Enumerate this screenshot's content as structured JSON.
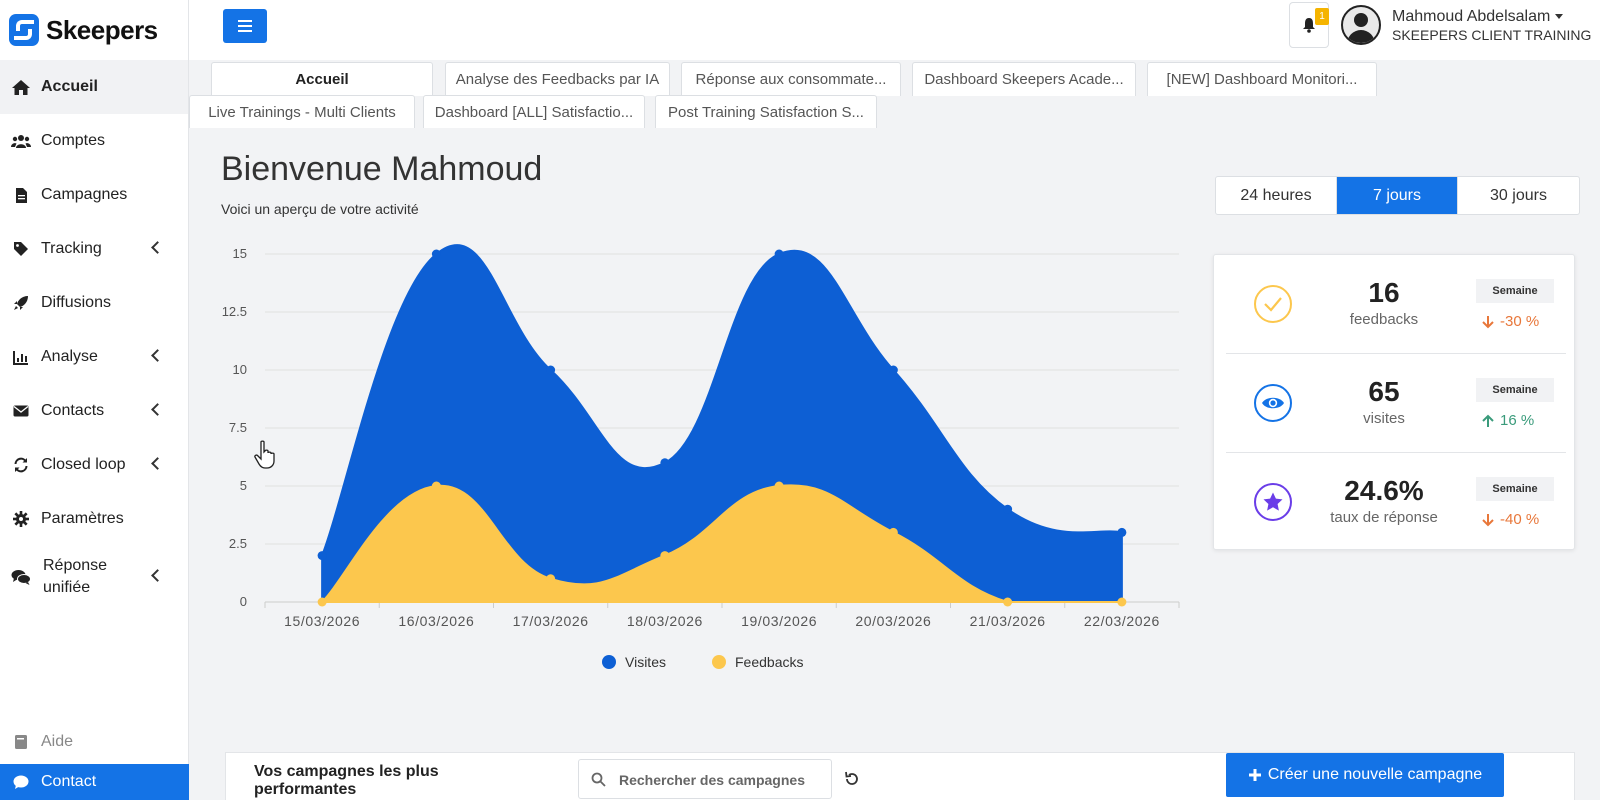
{
  "brand": {
    "name": "Skeepers"
  },
  "sidebar": {
    "items": [
      {
        "label": "Accueil",
        "icon": "home-icon",
        "active": true,
        "chevron": false
      },
      {
        "label": "Comptes",
        "icon": "users-icon",
        "chevron": false
      },
      {
        "label": "Campagnes",
        "icon": "file-icon",
        "chevron": false
      },
      {
        "label": "Tracking",
        "icon": "tag-icon",
        "chevron": true
      },
      {
        "label": "Diffusions",
        "icon": "rocket-icon",
        "chevron": false
      },
      {
        "label": "Analyse",
        "icon": "chart-icon",
        "chevron": true
      },
      {
        "label": "Contacts",
        "icon": "envelope-icon",
        "chevron": true
      },
      {
        "label": "Closed loop",
        "icon": "sync-icon",
        "chevron": true
      },
      {
        "label": "Paramètres",
        "icon": "gear-icon",
        "chevron": false
      },
      {
        "label": "Réponse unifiée",
        "icon": "comments-icon",
        "chevron": true
      }
    ],
    "help_label": "Aide",
    "contact_label": "Contact"
  },
  "header": {
    "notification_count": "1",
    "user_name": "Mahmoud Abdelsalam",
    "user_org": "SKEEPERS CLIENT TRAINING"
  },
  "tabs": {
    "row1": [
      "Accueil",
      "Analyse des Feedbacks par IA",
      "Réponse aux consommate...",
      "Dashboard Skeepers Acade...",
      "[NEW] Dashboard Monitori..."
    ],
    "row2": [
      "Live Trainings - Multi Clients",
      "Dashboard [ALL] Satisfactio...",
      "Post Training Satisfaction S..."
    ]
  },
  "main": {
    "title": "Bienvenue Mahmoud",
    "subtitle": "Voici un aperçu de votre activité",
    "periods": [
      "24 heures",
      "7 jours",
      "30 jours"
    ],
    "active_period": "7 jours"
  },
  "stats": [
    {
      "value": "16",
      "label": "feedbacks",
      "period": "Semaine",
      "delta": "-30 %",
      "direction": "down",
      "icon": "check-circle-icon"
    },
    {
      "value": "65",
      "label": "visites",
      "period": "Semaine",
      "delta": "16 %",
      "direction": "up",
      "icon": "eye-icon"
    },
    {
      "value": "24.6%",
      "label": "taux de réponse",
      "period": "Semaine",
      "delta": "-40 %",
      "direction": "down",
      "icon": "star-icon"
    }
  ],
  "campaigns": {
    "title": "Vos campagnes les plus performantes",
    "search_placeholder": "Rechercher des campagnes",
    "create_label": "Créer une nouvelle campagne"
  },
  "colors": {
    "accent": "#1473e6",
    "visites": "#0d5fd4",
    "feedbacks": "#fcc74d"
  },
  "chart_data": {
    "type": "area",
    "x": [
      "15/03/2026",
      "16/03/2026",
      "17/03/2026",
      "18/03/2026",
      "19/03/2026",
      "20/03/2026",
      "21/03/2026",
      "22/03/2026"
    ],
    "series": [
      {
        "name": "Visites",
        "values": [
          2,
          15,
          10,
          6,
          15,
          10,
          4,
          3
        ],
        "color": "#0d5fd4"
      },
      {
        "name": "Feedbacks",
        "values": [
          0,
          5,
          1,
          2,
          5,
          3,
          0,
          0
        ],
        "color": "#fcc74d"
      }
    ],
    "yticks": [
      "0",
      "2.5",
      "5",
      "7.5",
      "10",
      "12.5",
      "15"
    ],
    "ylim": [
      0,
      15
    ],
    "grid": true,
    "legend": "bottom-center"
  }
}
